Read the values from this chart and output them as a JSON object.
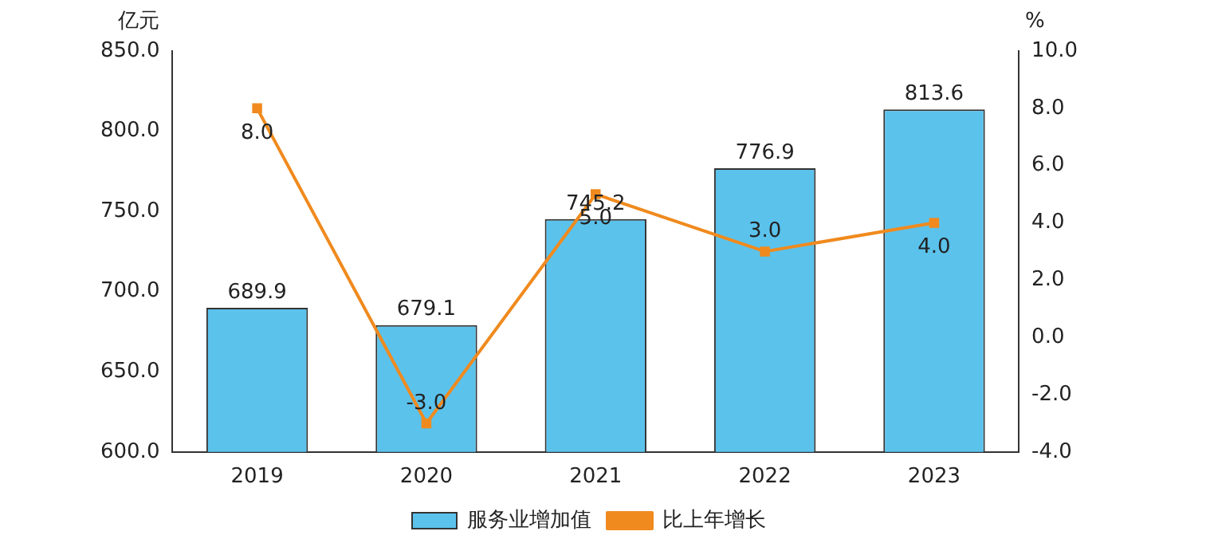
{
  "chart_data": {
    "type": "bar",
    "ylabel": "亿元",
    "y2label": "%",
    "categories": [
      "2019",
      "2020",
      "2021",
      "2022",
      "2023"
    ],
    "series": [
      {
        "name": "服务业增加值",
        "color": "#5bc2ec",
        "values": [
          689.9,
          679.1,
          745.2,
          776.9,
          813.6
        ],
        "value_labels": [
          "689.9",
          "679.1",
          "745.2",
          "776.9",
          "813.6"
        ]
      },
      {
        "name": "比上年增长",
        "type": "line",
        "axis": "y2",
        "color": "#f08a1e",
        "values": [
          8.0,
          -3.0,
          5.0,
          3.0,
          4.0
        ],
        "value_labels": [
          "8.0",
          "-3.0",
          "5.0",
          "3.0",
          "4.0"
        ]
      }
    ],
    "ylim": [
      600,
      850
    ],
    "yticks": [
      {
        "value": 600,
        "label": "600.0"
      },
      {
        "value": 650,
        "label": "650.0"
      },
      {
        "value": 700,
        "label": "700.0"
      },
      {
        "value": 750,
        "label": "750.0"
      },
      {
        "value": 800,
        "label": "800.0"
      },
      {
        "value": 850,
        "label": "850.0"
      }
    ],
    "y2lim": [
      -4,
      10
    ],
    "y2ticks": [
      {
        "value": -4,
        "label": "-4.0"
      },
      {
        "value": -2,
        "label": "-2.0"
      },
      {
        "value": 0,
        "label": "0.0"
      },
      {
        "value": 2,
        "label": "2.0"
      },
      {
        "value": 4,
        "label": "4.0"
      },
      {
        "value": 6,
        "label": "6.0"
      },
      {
        "value": 8,
        "label": "8.0"
      },
      {
        "value": 10,
        "label": "10.0"
      }
    ],
    "grid": false,
    "legend": "bottom",
    "marker": "square",
    "line_style": "solid"
  }
}
